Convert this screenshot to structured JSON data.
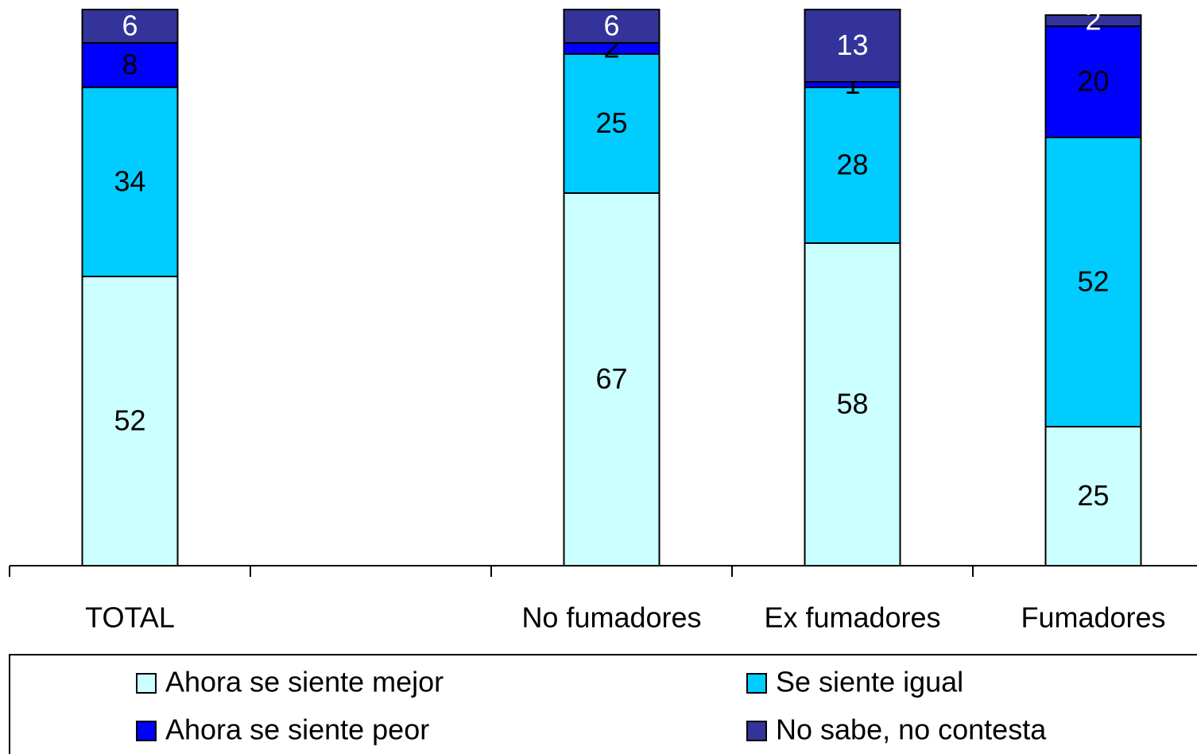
{
  "chart_data": {
    "type": "stacked_bar",
    "categories": [
      "TOTAL",
      null,
      "No fumadores",
      "Ex fumadores",
      "Fumadores"
    ],
    "series": [
      {
        "name": "Ahora se siente mejor",
        "color": "#ccffff",
        "label_color": "#000000",
        "values": [
          52,
          null,
          67,
          58,
          25
        ]
      },
      {
        "name": "Se siente igual",
        "color": "#00ccff",
        "label_color": "#000000",
        "values": [
          34,
          null,
          25,
          28,
          52
        ]
      },
      {
        "name": "Ahora se siente peor",
        "color": "#0000ff",
        "label_color": "#000000",
        "values": [
          8,
          null,
          2,
          1,
          20
        ]
      },
      {
        "name": "No sabe, no contesta",
        "color": "#333399",
        "label_color": "#ffffff",
        "values": [
          6,
          null,
          6,
          13,
          2
        ]
      }
    ],
    "ylim": [
      0,
      100
    ]
  }
}
